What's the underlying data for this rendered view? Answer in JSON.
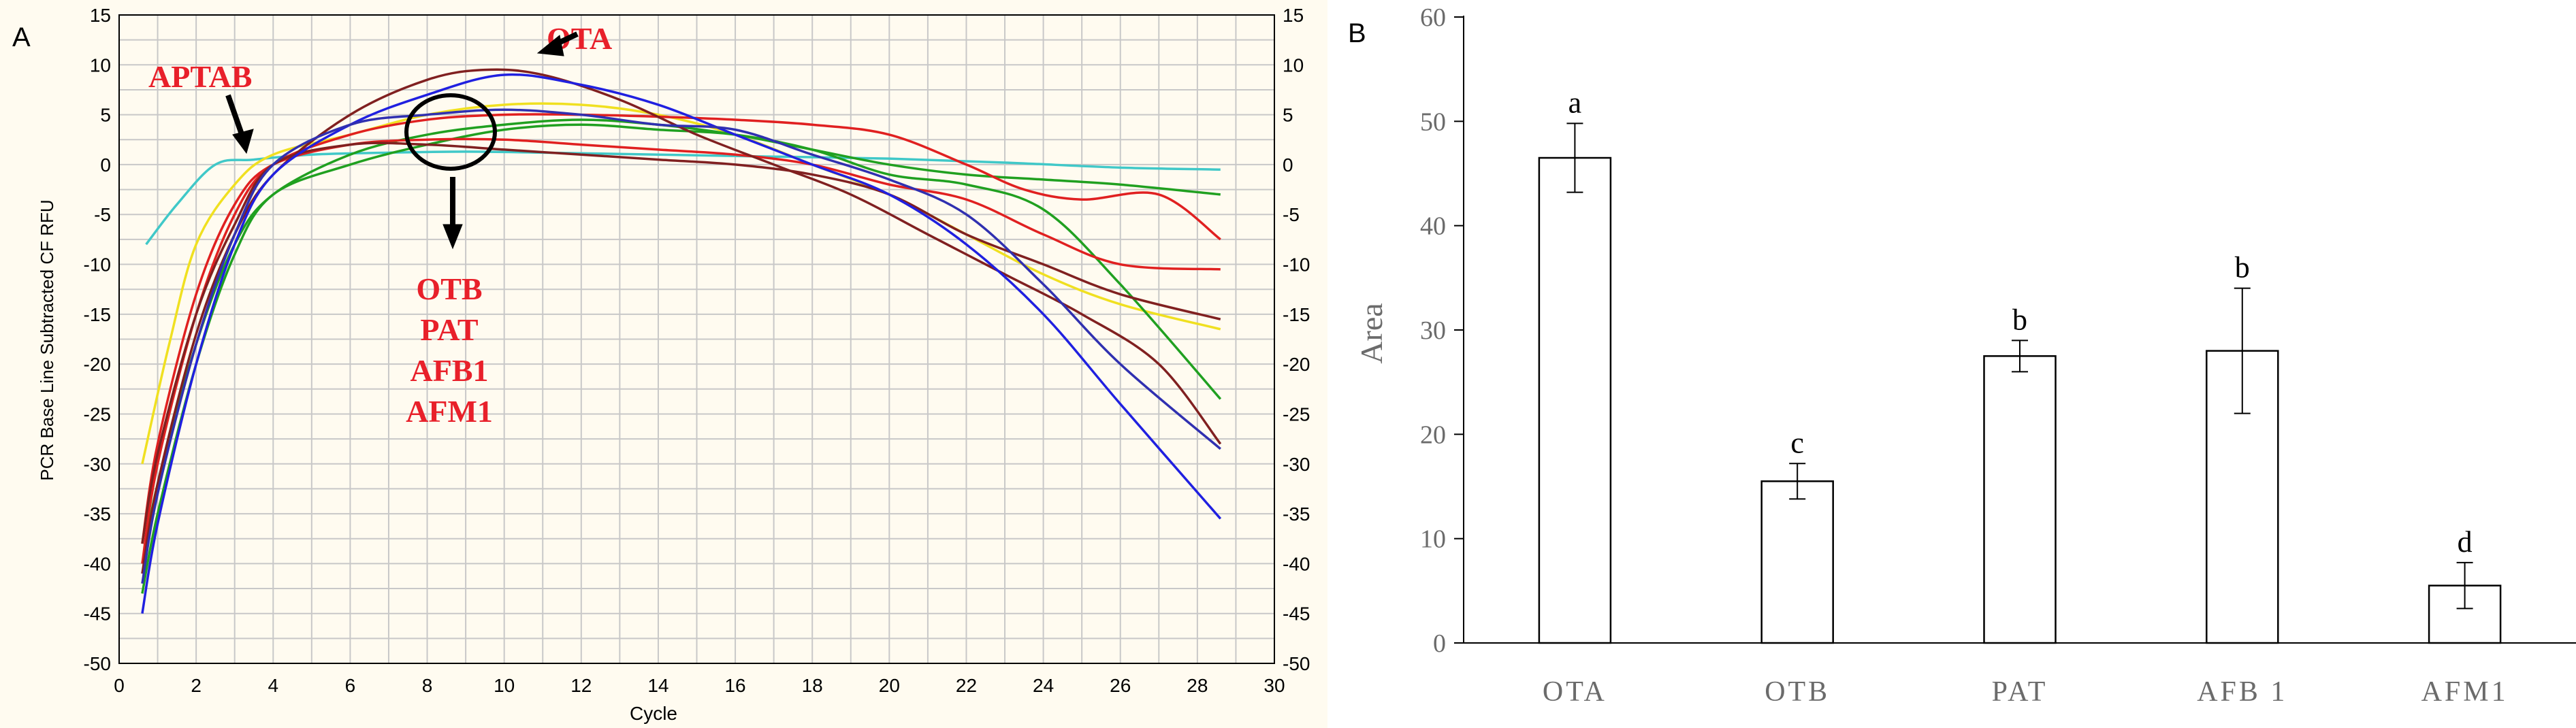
{
  "colors": {
    "panel_a_background": "#fffbf0",
    "grid": "#c8c8c8",
    "axis": "#000000",
    "annotation": "#e8202a",
    "bar_fill": "#ffffff",
    "bar_stroke": "#000000"
  },
  "chart_data": [
    {
      "type": "line",
      "panel_label": "A",
      "xlabel": "Cycle",
      "ylabel": "PCR Base Line Subtracted CF RFU",
      "xlim": [
        0,
        30
      ],
      "ylim": [
        -50,
        15
      ],
      "xticks": [
        "0",
        "2",
        "4",
        "6",
        "8",
        "10",
        "12",
        "14",
        "16",
        "18",
        "20",
        "22",
        "24",
        "26",
        "28",
        "30"
      ],
      "yticks": [
        "15",
        "10",
        "5",
        "0",
        "-5",
        "-10",
        "-15",
        "-20",
        "-25",
        "-30",
        "-35",
        "-40",
        "-45",
        "-50"
      ],
      "y2ticks": [
        "15",
        "10",
        "5",
        "0",
        "-5",
        "-10",
        "-15",
        "-20",
        "-25",
        "-30",
        "-35",
        "-40",
        "-45",
        "-50"
      ],
      "grid": true,
      "annotations": {
        "ota": "OTA",
        "aptab": "APTAB",
        "otb": "OTB",
        "pat": "PAT",
        "afb1": "AFB1",
        "afm1": "AFM1"
      },
      "series": [
        {
          "name": "cyan",
          "color": "#40c8c8",
          "x": [
            0.7,
            1.5,
            2.5,
            3.5,
            5,
            7,
            9,
            11,
            14,
            17,
            20,
            23,
            26,
            28.6
          ],
          "y": [
            -8,
            -4,
            0,
            0.5,
            1,
            1.2,
            1.3,
            1.2,
            1,
            0.8,
            0.6,
            0.2,
            -0.3,
            -0.5
          ]
        },
        {
          "name": "yellow",
          "color": "#f0e020",
          "x": [
            0.6,
            1.3,
            2,
            3,
            4,
            6,
            8,
            10,
            12,
            14,
            16,
            18,
            20,
            22,
            24,
            26,
            28.6
          ],
          "y": [
            -30,
            -18,
            -8,
            -2,
            1,
            3,
            5,
            6,
            6,
            5,
            3,
            0,
            -3,
            -7,
            -11,
            -14,
            -16.5
          ]
        },
        {
          "name": "green-1",
          "color": "#20a020",
          "x": [
            0.6,
            1,
            2,
            3,
            4,
            6,
            8,
            10,
            12,
            14,
            16,
            18,
            20,
            22,
            24,
            26,
            28.6
          ],
          "y": [
            -43,
            -35,
            -20,
            -9,
            -3,
            0,
            2,
            3.5,
            4,
            3.5,
            3,
            1.5,
            -1,
            -2,
            -4.5,
            -12,
            -23.5
          ]
        },
        {
          "name": "green-2",
          "color": "#20a020",
          "x": [
            0.6,
            1,
            2,
            3,
            4,
            6,
            8,
            10,
            12,
            14,
            16,
            18,
            20,
            22,
            24,
            26,
            28.6
          ],
          "y": [
            -40,
            -32,
            -18,
            -8,
            -3,
            1,
            3,
            4,
            4.5,
            4,
            3,
            1.5,
            0,
            -1,
            -1.5,
            -2,
            -3
          ]
        },
        {
          "name": "red-1",
          "color": "#e02020",
          "x": [
            0.6,
            1,
            2,
            3,
            4,
            6,
            8,
            10,
            12,
            14,
            16,
            18,
            20,
            22,
            23.5,
            25,
            27,
            28.6
          ],
          "y": [
            -40,
            -30,
            -15,
            -5,
            0,
            3,
            4.5,
            5,
            5,
            4.8,
            4.5,
            4,
            3,
            0,
            -2.5,
            -3.5,
            -3,
            -7.5
          ]
        },
        {
          "name": "red-2",
          "color": "#e02020",
          "x": [
            0.6,
            1,
            2,
            3,
            4,
            6,
            8,
            10,
            12,
            14,
            16,
            18,
            20,
            22,
            24,
            26,
            28.6
          ],
          "y": [
            -38,
            -28,
            -13,
            -4,
            0,
            2,
            2.5,
            2.5,
            2,
            1.5,
            1,
            0,
            -2,
            -3.5,
            -7,
            -10,
            -10.5
          ]
        },
        {
          "name": "brown-1",
          "color": "#802020",
          "x": [
            0.6,
            1,
            2,
            3,
            4,
            6,
            8,
            9.5,
            11,
            13,
            15,
            17,
            19,
            21,
            23,
            25,
            27,
            28.6
          ],
          "y": [
            -41,
            -32,
            -17,
            -7,
            -1,
            5,
            8.5,
            9.5,
            9,
            6.5,
            3,
            0,
            -3,
            -7,
            -11,
            -15,
            -20,
            -28
          ]
        },
        {
          "name": "brown-2",
          "color": "#802020",
          "x": [
            0.6,
            1,
            2,
            3,
            4,
            6,
            8,
            10,
            12,
            14,
            16,
            18,
            20,
            22,
            24,
            26,
            28.6
          ],
          "y": [
            -38,
            -29,
            -15,
            -6,
            0,
            2,
            2,
            1.5,
            1,
            0.5,
            0,
            -1,
            -3,
            -7,
            -10,
            -13,
            -15.5
          ]
        },
        {
          "name": "blue",
          "color": "#2020e0",
          "x": [
            0.6,
            1,
            2,
            3,
            4,
            6,
            8,
            10,
            12,
            14,
            16,
            18,
            20,
            22,
            24,
            26,
            28.6
          ],
          "y": [
            -45,
            -36,
            -20,
            -8,
            -1,
            4,
            7,
            9,
            8,
            6,
            3,
            0,
            -3,
            -8,
            -15,
            -24,
            -35.5
          ]
        },
        {
          "name": "navy",
          "color": "#3030b0",
          "x": [
            0.6,
            1,
            2,
            3,
            4,
            6,
            8,
            10,
            12,
            14,
            16,
            18,
            20,
            22,
            24,
            26,
            28.6
          ],
          "y": [
            -42,
            -33,
            -18,
            -7,
            0,
            4,
            5,
            5.5,
            5,
            4,
            3.5,
            1,
            -1.5,
            -5,
            -12,
            -20,
            -28.5
          ]
        }
      ]
    },
    {
      "type": "bar",
      "panel_label": "B",
      "ylabel": "Area",
      "xlabel": "",
      "ylim": [
        0,
        60
      ],
      "yticks": [
        "0",
        "10",
        "20",
        "30",
        "40",
        "50",
        "60"
      ],
      "categories": [
        "OTA",
        "OTB",
        "PAT",
        "AFB1",
        "AFM1"
      ],
      "category_labels": [
        "OTA",
        "OTB",
        "PAT",
        "AFB 1",
        "AFM1"
      ],
      "values": [
        46.5,
        15.5,
        27.5,
        28,
        5.5
      ],
      "errors": [
        3.3,
        1.7,
        1.5,
        6,
        2.2
      ],
      "significance": [
        "a",
        "c",
        "b",
        "b",
        "d"
      ],
      "grid": false
    }
  ]
}
